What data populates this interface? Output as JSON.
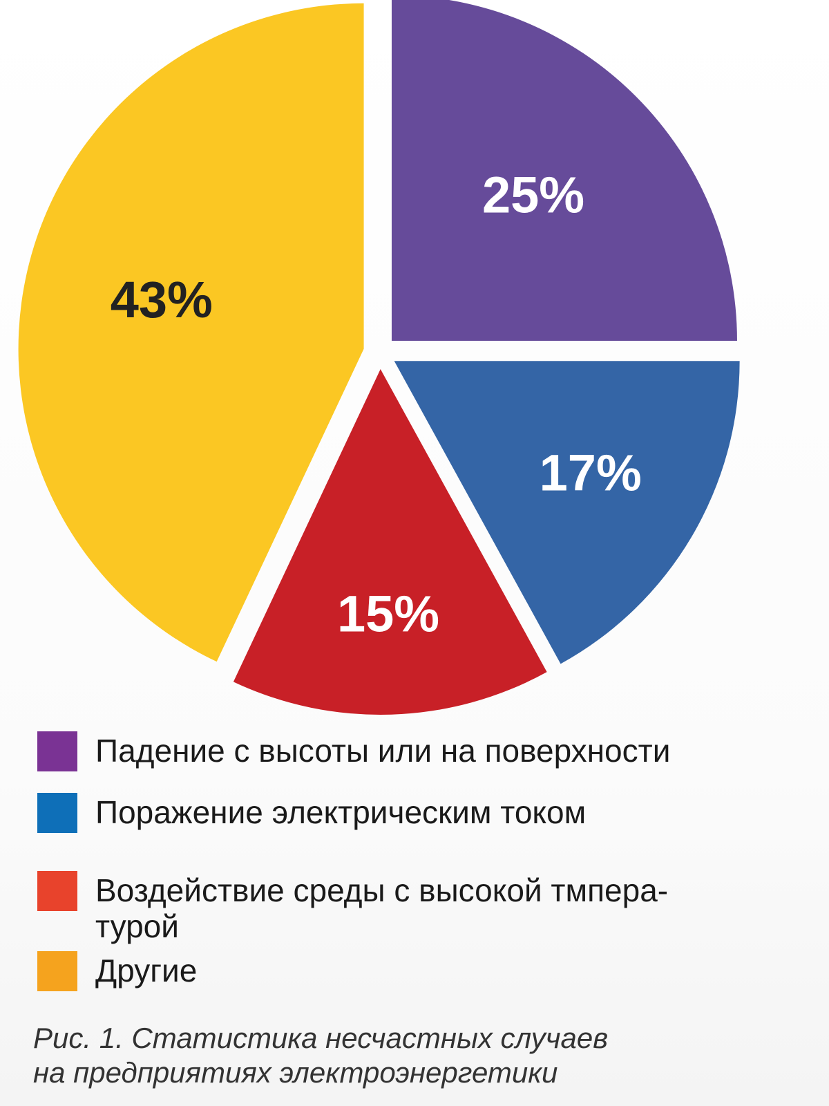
{
  "chart_data": {
    "type": "pie",
    "slices": [
      {
        "label": "Падение с высоты или на поверхности",
        "value": 25,
        "value_label": "25%",
        "color": "#664b9a",
        "legend_color": "#7a3394",
        "label_color": "#ffffff"
      },
      {
        "label": "Поражение электрическим током",
        "value": 17,
        "value_label": "17%",
        "color": "#3465a6",
        "legend_color": "#0e6fb8",
        "label_color": "#ffffff"
      },
      {
        "label": "Воздействие среды с высокой тмпера-\nтурой",
        "value": 15,
        "value_label": "15%",
        "color": "#c82027",
        "legend_color": "#e8432c",
        "label_color": "#ffffff"
      },
      {
        "label": "Другие",
        "value": 43,
        "value_label": "43%",
        "color": "#fbc723",
        "legend_color": "#f5a31e",
        "label_color": "#222222"
      }
    ],
    "start_angle_deg": 0,
    "direction": "clockwise",
    "legend_position": "bottom"
  },
  "caption": "Рис. 1. Статистика несчастных случаев\nна предприятиях электроэнергетики"
}
